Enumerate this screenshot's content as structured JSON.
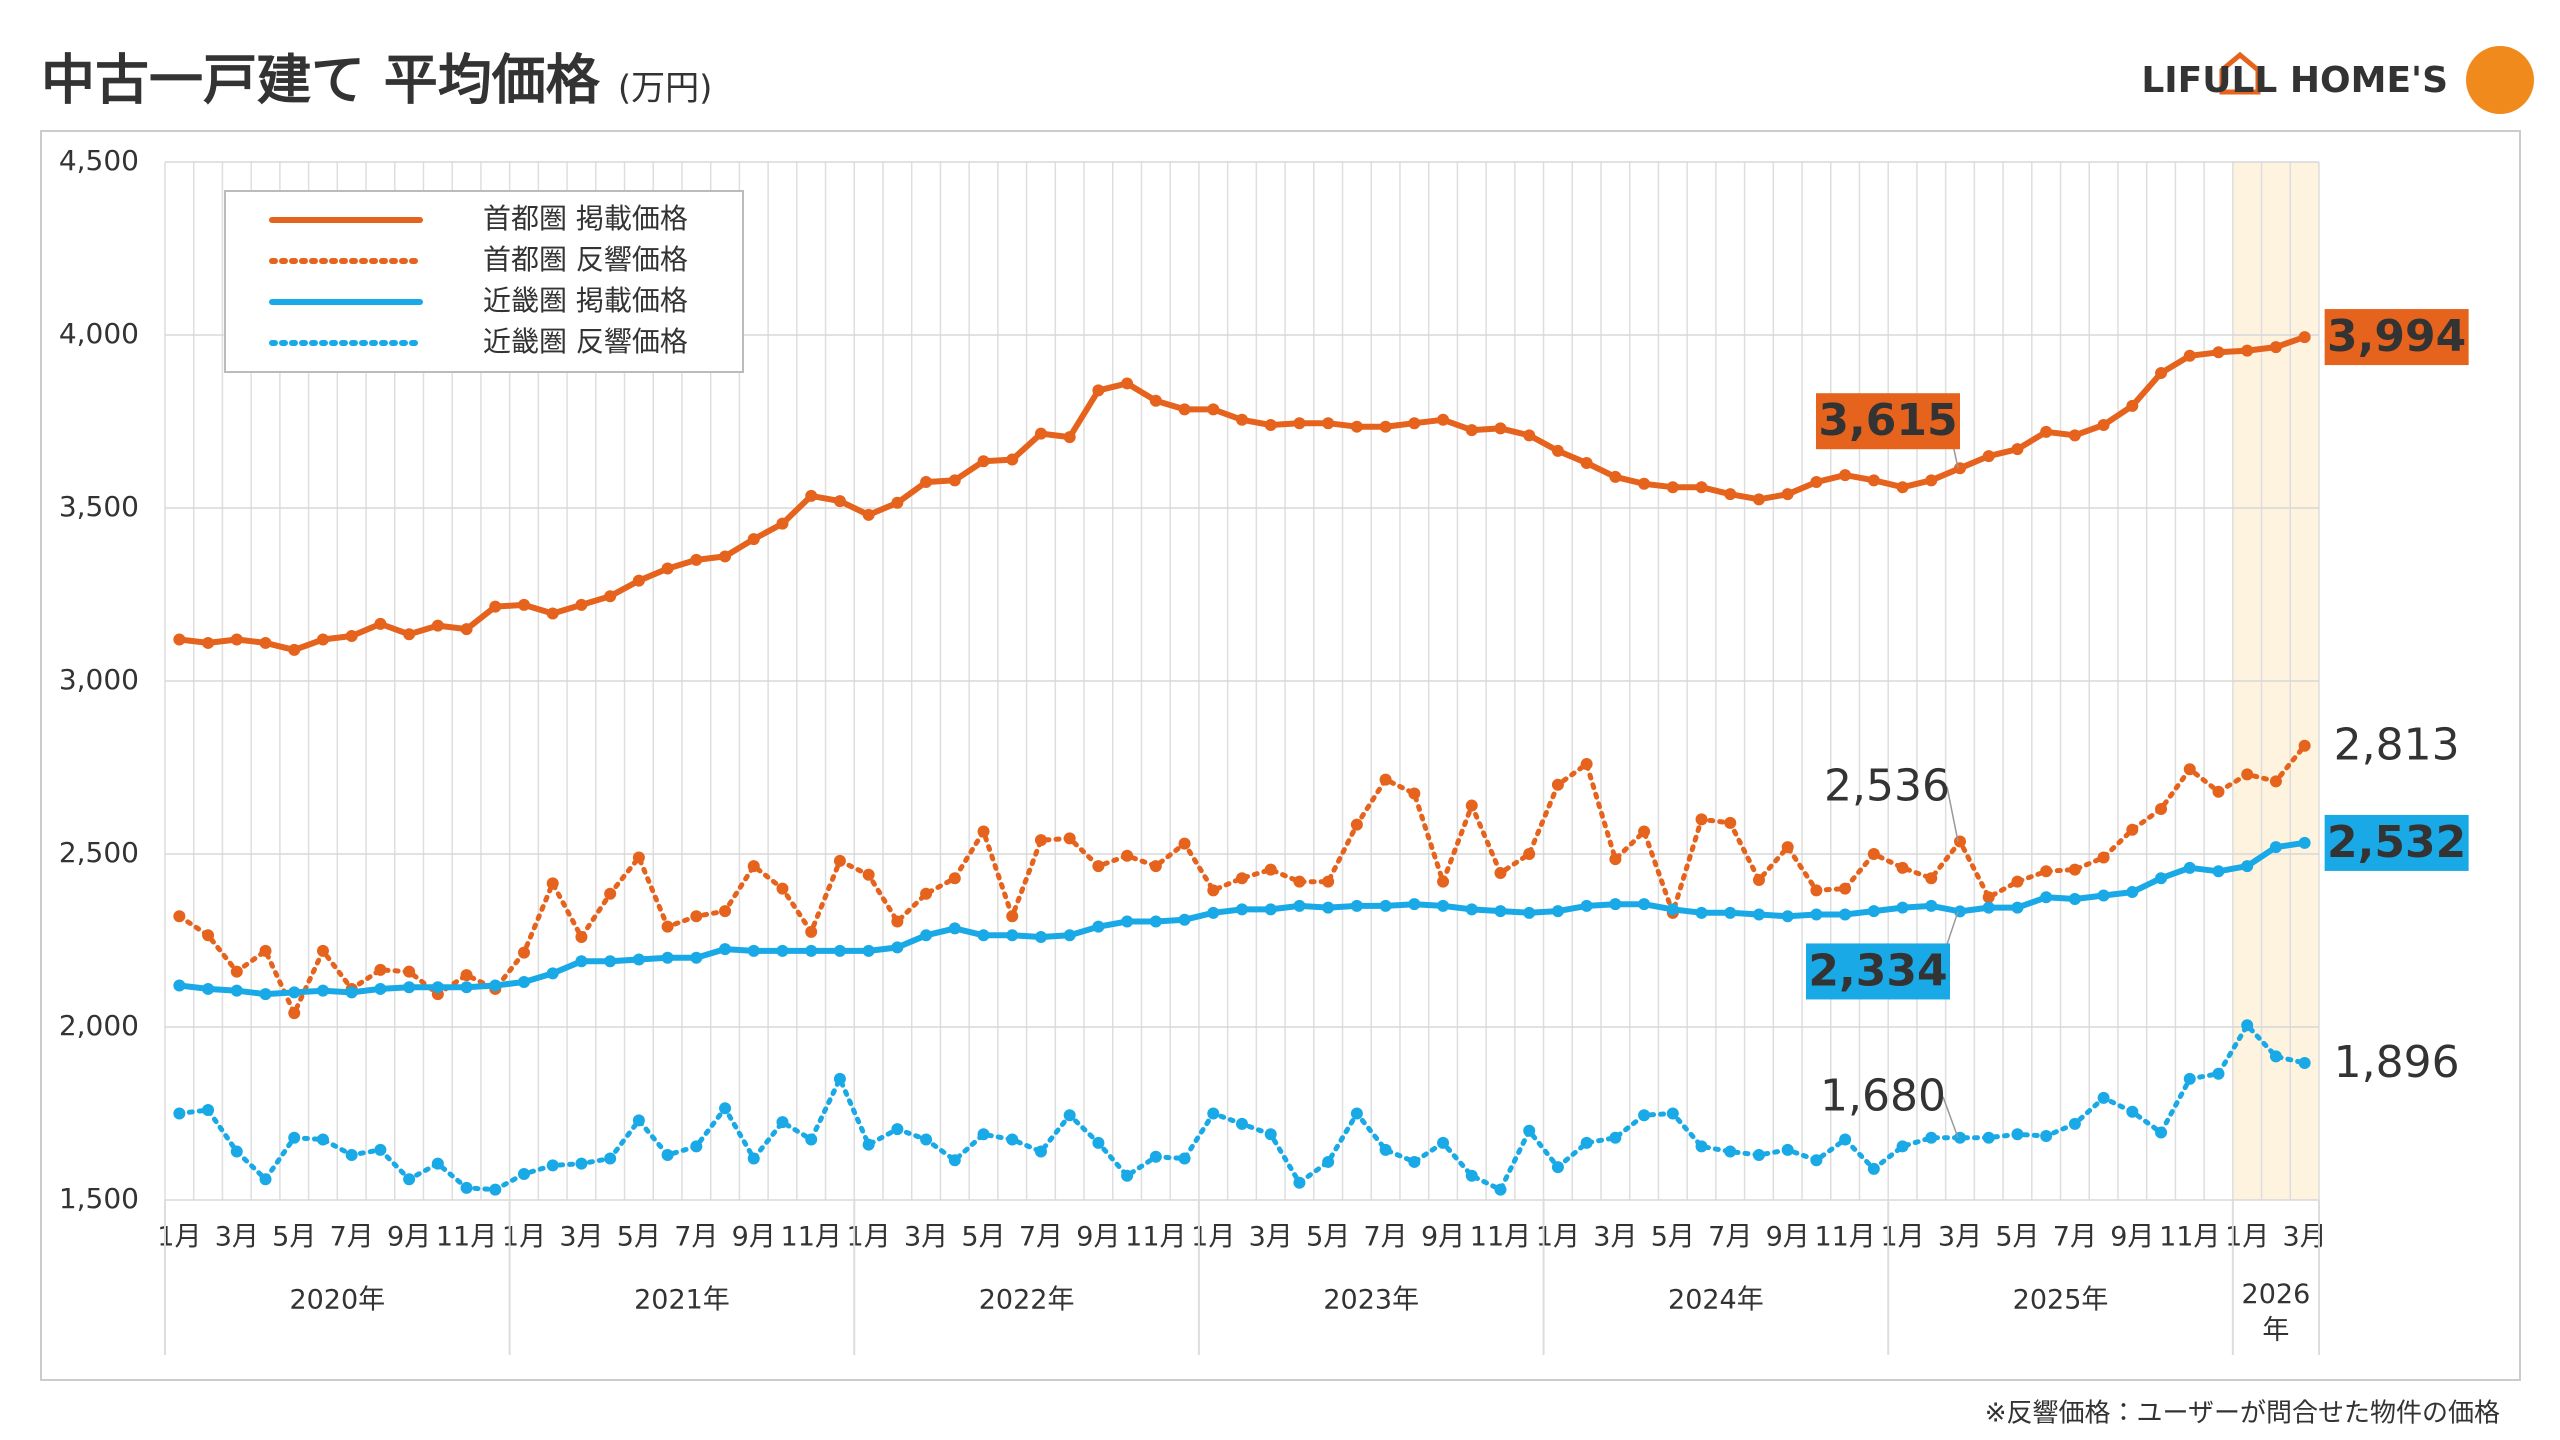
{
  "chart_data": {
    "type": "line",
    "title": "中古一戸建て 平均価格",
    "unit": "(万円)",
    "brand": "LIFULL HOME'S",
    "footnote": "※反響価格：ユーザーが問合せた物件の価格",
    "categories": [
      "1月",
      null,
      "3月",
      null,
      "5月",
      null,
      "7月",
      null,
      "9月",
      null,
      "11月",
      null,
      "1月",
      null,
      "3月",
      null,
      "5月",
      null,
      "7月",
      null,
      "9月",
      null,
      "11月",
      null,
      "1月",
      null,
      "3月",
      null,
      "5月",
      null,
      "7月",
      null,
      "9月",
      null,
      "11月",
      null,
      "1月",
      null,
      "3月",
      null,
      "5月",
      null,
      "7月",
      null,
      "9月",
      null,
      "11月",
      null,
      "1月",
      null,
      "3月",
      null,
      "5月",
      null,
      "7月",
      null,
      "9月",
      null,
      "11月",
      null,
      "1月",
      null,
      "3月",
      null,
      "5月",
      null,
      "7月",
      null,
      "9月",
      null,
      "11月",
      null,
      "1月",
      null,
      "3月"
    ],
    "year_groups": [
      "2020年",
      "2021年",
      "2022年",
      "2023年",
      "2024年",
      "2025年",
      "2026年"
    ],
    "highlight_last_group": true,
    "ylim": [
      1500,
      4500
    ],
    "yticks": [
      {
        "value": 1500,
        "label": "1,500"
      },
      {
        "value": 2000,
        "label": "2,000"
      },
      {
        "value": 2500,
        "label": "2,500"
      },
      {
        "value": 3000,
        "label": "3,000"
      },
      {
        "value": 3500,
        "label": "3,500"
      },
      {
        "value": 4000,
        "label": "4,000"
      },
      {
        "value": 4500,
        "label": "4,500"
      }
    ],
    "grid": true,
    "legend": "upper left",
    "series": [
      {
        "name": "首都圏 掲載価格",
        "color": "#e5631c",
        "style": "solid",
        "label_box": true,
        "values": [
          3120,
          3110,
          3120,
          3110,
          3090,
          3120,
          3130,
          3165,
          3135,
          3160,
          3150,
          3215,
          3220,
          3195,
          3220,
          3245,
          3290,
          3325,
          3350,
          3360,
          3410,
          3455,
          3535,
          3520,
          3480,
          3515,
          3575,
          3580,
          3635,
          3640,
          3715,
          3705,
          3840,
          3860,
          3810,
          3785,
          3785,
          3755,
          3740,
          3745,
          3745,
          3735,
          3735,
          3745,
          3755,
          3725,
          3730,
          3710,
          3665,
          3630,
          3590,
          3570,
          3560,
          3560,
          3540,
          3525,
          3540,
          3575,
          3595,
          3580,
          3560,
          3580,
          3615,
          3650,
          3670,
          3720,
          3710,
          3740,
          3795,
          3890,
          3940,
          3950,
          3955,
          3965,
          3994
        ],
        "value_labels": [
          null,
          null,
          null,
          null,
          null,
          null,
          null,
          null,
          null,
          null,
          null,
          null,
          null,
          null,
          null,
          null,
          null,
          null,
          null,
          null,
          null,
          null,
          null,
          null,
          null,
          null,
          null,
          null,
          null,
          null,
          null,
          null,
          null,
          null,
          null,
          null,
          null,
          null,
          null,
          null,
          null,
          null,
          null,
          null,
          null,
          null,
          null,
          null,
          null,
          null,
          null,
          null,
          null,
          null,
          null,
          null,
          null,
          null,
          null,
          null,
          null,
          null,
          "3,615",
          null,
          null,
          null,
          null,
          null,
          null,
          null,
          null,
          null,
          null,
          null,
          "3,994"
        ]
      },
      {
        "name": "首都圏 反響価格",
        "color": "#e5631c",
        "style": "dotted",
        "label_box": false,
        "values": [
          2320,
          2265,
          2160,
          2220,
          2040,
          2220,
          2110,
          2165,
          2160,
          2095,
          2150,
          2110,
          2215,
          2415,
          2260,
          2385,
          2490,
          2290,
          2320,
          2335,
          2465,
          2400,
          2275,
          2480,
          2440,
          2305,
          2385,
          2430,
          2565,
          2320,
          2540,
          2545,
          2465,
          2495,
          2465,
          2530,
          2395,
          2430,
          2455,
          2420,
          2420,
          2585,
          2715,
          2675,
          2420,
          2640,
          2445,
          2500,
          2700,
          2760,
          2485,
          2565,
          2330,
          2600,
          2590,
          2425,
          2520,
          2395,
          2400,
          2500,
          2460,
          2430,
          2536,
          2375,
          2420,
          2450,
          2455,
          2490,
          2570,
          2630,
          2745,
          2680,
          2730,
          2710,
          2813
        ],
        "value_labels": [
          null,
          null,
          null,
          null,
          null,
          null,
          null,
          null,
          null,
          null,
          null,
          null,
          null,
          null,
          null,
          null,
          null,
          null,
          null,
          null,
          null,
          null,
          null,
          null,
          null,
          null,
          null,
          null,
          null,
          null,
          null,
          null,
          null,
          null,
          null,
          null,
          null,
          null,
          null,
          null,
          null,
          null,
          null,
          null,
          null,
          null,
          null,
          null,
          null,
          null,
          null,
          null,
          null,
          null,
          null,
          null,
          null,
          null,
          null,
          null,
          null,
          null,
          "2,536",
          null,
          null,
          null,
          null,
          null,
          null,
          null,
          null,
          null,
          null,
          null,
          "2,813"
        ]
      },
      {
        "name": "近畿圏 掲載価格",
        "color": "#19a9e6",
        "style": "solid",
        "label_box": true,
        "values": [
          2120,
          2110,
          2105,
          2095,
          2100,
          2105,
          2100,
          2110,
          2115,
          2115,
          2115,
          2120,
          2130,
          2155,
          2190,
          2190,
          2195,
          2200,
          2200,
          2225,
          2220,
          2220,
          2220,
          2220,
          2220,
          2230,
          2265,
          2285,
          2265,
          2265,
          2260,
          2265,
          2290,
          2305,
          2305,
          2310,
          2330,
          2340,
          2340,
          2350,
          2345,
          2350,
          2350,
          2355,
          2350,
          2340,
          2335,
          2330,
          2335,
          2350,
          2355,
          2355,
          2340,
          2330,
          2330,
          2325,
          2320,
          2325,
          2325,
          2335,
          2345,
          2350,
          2334,
          2345,
          2345,
          2375,
          2370,
          2380,
          2390,
          2430,
          2460,
          2450,
          2465,
          2520,
          2532
        ],
        "value_labels": [
          null,
          null,
          null,
          null,
          null,
          null,
          null,
          null,
          null,
          null,
          null,
          null,
          null,
          null,
          null,
          null,
          null,
          null,
          null,
          null,
          null,
          null,
          null,
          null,
          null,
          null,
          null,
          null,
          null,
          null,
          null,
          null,
          null,
          null,
          null,
          null,
          null,
          null,
          null,
          null,
          null,
          null,
          null,
          null,
          null,
          null,
          null,
          null,
          null,
          null,
          null,
          null,
          null,
          null,
          null,
          null,
          null,
          null,
          null,
          null,
          null,
          null,
          "2,334",
          null,
          null,
          null,
          null,
          null,
          null,
          null,
          null,
          null,
          null,
          null,
          "2,532"
        ]
      },
      {
        "name": "近畿圏 反響価格",
        "color": "#19a9e6",
        "style": "dotted",
        "label_box": false,
        "values": [
          1750,
          1760,
          1640,
          1560,
          1680,
          1675,
          1630,
          1645,
          1560,
          1605,
          1535,
          1530,
          1575,
          1600,
          1605,
          1620,
          1730,
          1630,
          1655,
          1765,
          1620,
          1725,
          1675,
          1850,
          1660,
          1705,
          1675,
          1615,
          1690,
          1675,
          1640,
          1745,
          1665,
          1570,
          1625,
          1620,
          1750,
          1720,
          1690,
          1550,
          1610,
          1750,
          1645,
          1610,
          1665,
          1570,
          1530,
          1700,
          1595,
          1665,
          1680,
          1745,
          1750,
          1655,
          1640,
          1630,
          1645,
          1615,
          1675,
          1590,
          1655,
          1680,
          1680,
          1680,
          1690,
          1685,
          1720,
          1795,
          1755,
          1695,
          1850,
          1865,
          2005,
          1915,
          1896
        ],
        "value_labels": [
          null,
          null,
          null,
          null,
          null,
          null,
          null,
          null,
          null,
          null,
          null,
          null,
          null,
          null,
          null,
          null,
          null,
          null,
          null,
          null,
          null,
          null,
          null,
          null,
          null,
          null,
          null,
          null,
          null,
          null,
          null,
          null,
          null,
          null,
          null,
          null,
          null,
          null,
          null,
          null,
          null,
          null,
          null,
          null,
          null,
          null,
          null,
          null,
          null,
          null,
          null,
          null,
          null,
          null,
          null,
          null,
          null,
          null,
          null,
          null,
          null,
          null,
          "1,680",
          null,
          null,
          null,
          null,
          null,
          null,
          null,
          null,
          null,
          null,
          null,
          "1,896"
        ]
      }
    ]
  }
}
